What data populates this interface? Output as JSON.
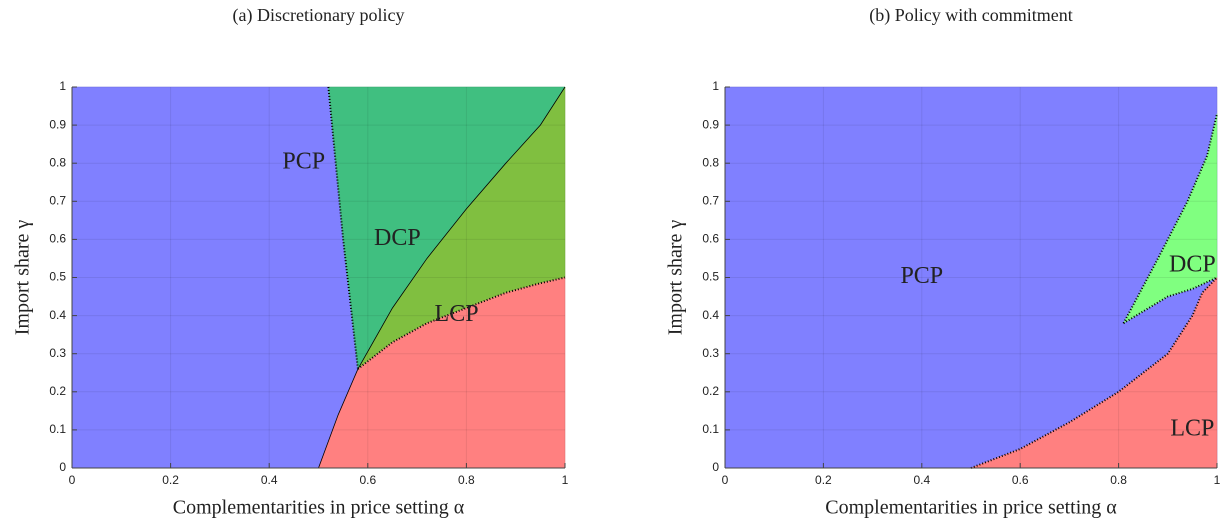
{
  "chart_data": [
    {
      "type": "region",
      "title": "(a) Discretionary policy",
      "xlabel": "Complementarities in price setting α",
      "ylabel": "Import share γ",
      "xlim": [
        0,
        1
      ],
      "ylim": [
        0,
        1
      ],
      "xticks": [
        0,
        0.2,
        0.4,
        0.6,
        0.8,
        1
      ],
      "yticks": [
        0,
        0.1,
        0.2,
        0.3,
        0.4,
        0.5,
        0.6,
        0.7,
        0.8,
        0.9,
        1
      ],
      "grid": true,
      "regions": [
        {
          "name": "PCP",
          "color": "#8080ff",
          "x": [
            0,
            0.5,
            0.54,
            0.58,
            0.55,
            0.52,
            0
          ],
          "y": [
            0,
            0,
            0.14,
            0.26,
            0.6,
            1,
            1
          ]
        },
        {
          "name": "DCP",
          "color": "#40bf80",
          "x": [
            0.52,
            0.55,
            0.58,
            0.65,
            0.72,
            0.8,
            0.88,
            0.95,
            1
          ],
          "y": [
            1,
            0.6,
            0.26,
            0.42,
            0.55,
            0.68,
            0.8,
            0.9,
            1
          ]
        },
        {
          "color": "#80bf40",
          "x": [
            0.58,
            0.65,
            0.72,
            0.8,
            0.88,
            0.95,
            1,
            1,
            0.95,
            0.88,
            0.8,
            0.72,
            0.65
          ],
          "y": [
            0.26,
            0.42,
            0.55,
            0.68,
            0.8,
            0.9,
            1,
            0.5,
            0.485,
            0.46,
            0.42,
            0.38,
            0.33
          ]
        },
        {
          "name": "LCP",
          "color": "#ff8080",
          "x": [
            0.5,
            0.54,
            0.58,
            0.65,
            0.72,
            0.8,
            0.88,
            0.95,
            1,
            1
          ],
          "y": [
            0,
            0.14,
            0.26,
            0.33,
            0.38,
            0.42,
            0.46,
            0.485,
            0.5,
            0
          ]
        }
      ],
      "lines": [
        {
          "style": "dotted",
          "x": [
            0.52,
            0.55,
            0.58
          ],
          "y": [
            1,
            0.6,
            0.26
          ]
        },
        {
          "style": "solid",
          "x": [
            0.58,
            0.65,
            0.72,
            0.8,
            0.88,
            0.95,
            1
          ],
          "y": [
            0.26,
            0.42,
            0.55,
            0.68,
            0.8,
            0.9,
            1
          ]
        },
        {
          "style": "dotted",
          "x": [
            0.58,
            0.65,
            0.72,
            0.8,
            0.88,
            0.95,
            1
          ],
          "y": [
            0.26,
            0.33,
            0.38,
            0.42,
            0.46,
            0.485,
            0.5
          ]
        },
        {
          "style": "solid",
          "x": [
            0.5,
            0.54,
            0.58
          ],
          "y": [
            0,
            0.14,
            0.26
          ]
        }
      ]
    },
    {
      "type": "region",
      "title": "(b) Policy with commitment",
      "xlabel": "Complementarities in price setting α",
      "ylabel": "Import share γ",
      "xlim": [
        0,
        1
      ],
      "ylim": [
        0,
        1
      ],
      "xticks": [
        0,
        0.2,
        0.4,
        0.6,
        0.8,
        1
      ],
      "yticks": [
        0,
        0.1,
        0.2,
        0.3,
        0.4,
        0.5,
        0.6,
        0.7,
        0.8,
        0.9,
        1
      ],
      "grid": true,
      "regions": [
        {
          "name": "PCP",
          "color": "#8080ff",
          "x": [
            0,
            1,
            1,
            0
          ],
          "y": [
            0,
            0,
            1,
            1
          ]
        },
        {
          "name": "DCP",
          "color": "#80ff80",
          "x": [
            0.81,
            0.88,
            0.94,
            0.98,
            1,
            1,
            0.95,
            0.9
          ],
          "y": [
            0.38,
            0.55,
            0.7,
            0.82,
            0.93,
            0.5,
            0.47,
            0.45
          ]
        },
        {
          "name": "LCP",
          "color": "#ff8080",
          "x": [
            0.5,
            0.6,
            0.7,
            0.8,
            0.9,
            0.95,
            0.97,
            1,
            1
          ],
          "y": [
            0,
            0.05,
            0.12,
            0.2,
            0.3,
            0.4,
            0.46,
            0.5,
            0
          ]
        }
      ],
      "lines": [
        {
          "style": "dotted",
          "x": [
            0.5,
            0.6,
            0.7,
            0.8,
            0.9,
            0.95,
            0.97,
            1
          ],
          "y": [
            0,
            0.05,
            0.12,
            0.2,
            0.3,
            0.4,
            0.46,
            0.5
          ]
        },
        {
          "style": "dotted",
          "x": [
            0.81,
            0.88,
            0.94,
            0.98,
            1
          ],
          "y": [
            0.38,
            0.55,
            0.7,
            0.82,
            0.93
          ]
        },
        {
          "style": "dotted",
          "x": [
            0.81,
            0.9,
            0.95,
            1
          ],
          "y": [
            0.38,
            0.45,
            0.47,
            0.5
          ]
        }
      ]
    }
  ]
}
